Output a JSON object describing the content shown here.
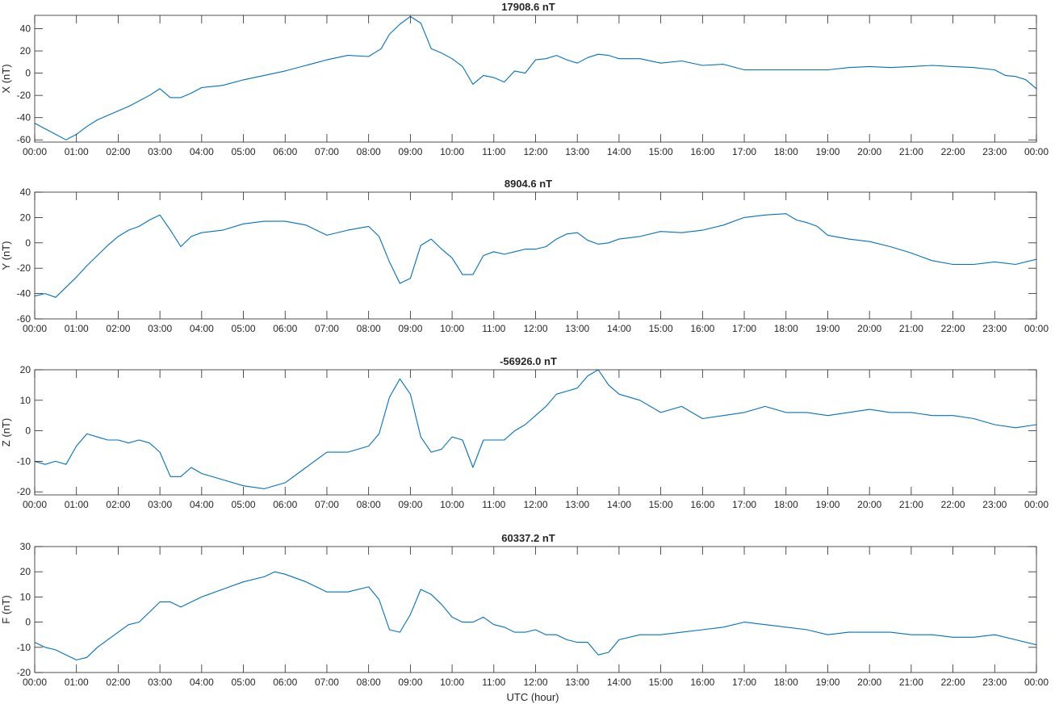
{
  "figure": {
    "xlabel": "UTC (hour)",
    "line_color": "#0072bd",
    "axis_color": "#262626"
  },
  "chart_data": [
    {
      "type": "line",
      "title": "17908.6 nT",
      "ylabel": "X (nT)",
      "xlabel": "",
      "xlim": [
        0,
        24
      ],
      "ylim": [
        -62,
        52
      ],
      "yticks": [
        -60,
        -40,
        -20,
        0,
        20,
        40
      ],
      "xtick_labels": [
        "00:00",
        "01:00",
        "02:00",
        "03:00",
        "04:00",
        "05:00",
        "06:00",
        "07:00",
        "08:00",
        "09:00",
        "10:00",
        "11:00",
        "12:00",
        "13:00",
        "14:00",
        "15:00",
        "16:00",
        "17:00",
        "18:00",
        "19:00",
        "20:00",
        "21:00",
        "22:00",
        "23:00",
        "00:00"
      ],
      "series": [
        {
          "x": [
            0,
            0.25,
            0.5,
            0.75,
            1,
            1.25,
            1.5,
            1.75,
            2,
            2.25,
            2.5,
            2.75,
            3,
            3.25,
            3.5,
            3.75,
            4,
            4.5,
            5,
            5.5,
            6,
            6.5,
            7,
            7.5,
            8,
            8.3,
            8.5,
            8.75,
            9,
            9.25,
            9.5,
            9.75,
            10,
            10.25,
            10.5,
            10.75,
            11,
            11.25,
            11.5,
            11.75,
            12,
            12.25,
            12.5,
            12.75,
            13,
            13.25,
            13.5,
            13.75,
            14,
            14.5,
            15,
            15.5,
            16,
            16.5,
            17,
            17.5,
            18,
            18.5,
            19,
            19.5,
            20,
            20.5,
            21,
            21.5,
            22,
            22.5,
            23,
            23.25,
            23.5,
            23.75,
            24
          ],
          "y": [
            -45,
            -50,
            -55,
            -60,
            -55,
            -48,
            -42,
            -38,
            -34,
            -30,
            -25,
            -20,
            -14,
            -22,
            -22,
            -18,
            -13,
            -11,
            -6,
            -2,
            2,
            7,
            12,
            16,
            15,
            22,
            35,
            44,
            51,
            45,
            22,
            18,
            13,
            6,
            -10,
            -2,
            -4,
            -8,
            2,
            0,
            12,
            13,
            16,
            12,
            9,
            14,
            17,
            16,
            13,
            13,
            9,
            11,
            7,
            8,
            3,
            3,
            3,
            3,
            3,
            5,
            6,
            5,
            6,
            7,
            6,
            5,
            3,
            -2,
            -3,
            -6,
            -14
          ]
        }
      ]
    },
    {
      "type": "line",
      "title": "8904.6 nT",
      "ylabel": "Y (nT)",
      "xlabel": "",
      "xlim": [
        0,
        24
      ],
      "ylim": [
        -60,
        40
      ],
      "yticks": [
        -60,
        -40,
        -20,
        0,
        20,
        40
      ],
      "xtick_labels": [
        "00:00",
        "01:00",
        "02:00",
        "03:00",
        "04:00",
        "05:00",
        "06:00",
        "07:00",
        "08:00",
        "09:00",
        "10:00",
        "11:00",
        "12:00",
        "13:00",
        "14:00",
        "15:00",
        "16:00",
        "17:00",
        "18:00",
        "19:00",
        "20:00",
        "21:00",
        "22:00",
        "23:00",
        "00:00"
      ],
      "series": [
        {
          "x": [
            0,
            0.25,
            0.5,
            0.75,
            1,
            1.25,
            1.5,
            1.75,
            2,
            2.25,
            2.5,
            2.75,
            3,
            3.25,
            3.5,
            3.75,
            4,
            4.5,
            5,
            5.5,
            6,
            6.5,
            7,
            7.5,
            8,
            8.25,
            8.5,
            8.75,
            9,
            9.25,
            9.5,
            9.75,
            10,
            10.25,
            10.5,
            10.75,
            11,
            11.25,
            11.5,
            11.75,
            12,
            12.25,
            12.5,
            12.75,
            13,
            13.25,
            13.5,
            13.75,
            14,
            14.5,
            15,
            15.5,
            16,
            16.5,
            17,
            17.5,
            18,
            18.25,
            18.5,
            18.75,
            19,
            19.5,
            20,
            20.5,
            21,
            21.5,
            22,
            22.5,
            23,
            23.5,
            24
          ],
          "y": [
            -42,
            -40,
            -43,
            -35,
            -27,
            -18,
            -10,
            -2,
            5,
            10,
            13,
            18,
            22,
            10,
            -3,
            5,
            8,
            10,
            15,
            17,
            17,
            14,
            6,
            10,
            13,
            5,
            -15,
            -32,
            -28,
            -2,
            3,
            -5,
            -12,
            -25,
            -25,
            -10,
            -7,
            -9,
            -7,
            -5,
            -5,
            -3,
            3,
            7,
            8,
            2,
            -1,
            0,
            3,
            5,
            9,
            8,
            10,
            14,
            20,
            22,
            23,
            18,
            16,
            13,
            6,
            3,
            1,
            -3,
            -8,
            -14,
            -17,
            -17,
            -15,
            -17,
            -13
          ]
        }
      ]
    },
    {
      "type": "line",
      "title": "-56926.0 nT",
      "ylabel": "Z (nT)",
      "xlabel": "",
      "xlim": [
        0,
        24
      ],
      "ylim": [
        -21,
        20
      ],
      "yticks": [
        -20,
        -10,
        0,
        10,
        20
      ],
      "xtick_labels": [
        "00:00",
        "01:00",
        "02:00",
        "03:00",
        "04:00",
        "05:00",
        "06:00",
        "07:00",
        "08:00",
        "09:00",
        "10:00",
        "11:00",
        "12:00",
        "13:00",
        "14:00",
        "15:00",
        "16:00",
        "17:00",
        "18:00",
        "19:00",
        "20:00",
        "21:00",
        "22:00",
        "23:00",
        "00:00"
      ],
      "series": [
        {
          "x": [
            0,
            0.25,
            0.5,
            0.75,
            1,
            1.25,
            1.5,
            1.75,
            2,
            2.25,
            2.5,
            2.75,
            3,
            3.25,
            3.5,
            3.75,
            4,
            4.5,
            5,
            5.5,
            6,
            6.5,
            7,
            7.5,
            8,
            8.25,
            8.5,
            8.75,
            9,
            9.25,
            9.5,
            9.75,
            10,
            10.25,
            10.5,
            10.75,
            11,
            11.25,
            11.5,
            11.75,
            12,
            12.25,
            12.5,
            12.75,
            13,
            13.25,
            13.5,
            13.75,
            14,
            14.5,
            15,
            15.5,
            16,
            16.5,
            17,
            17.5,
            18,
            18.5,
            19,
            19.5,
            20,
            20.5,
            21,
            21.5,
            22,
            22.5,
            23,
            23.5,
            24
          ],
          "y": [
            -10,
            -11,
            -10,
            -11,
            -5,
            -1,
            -2,
            -3,
            -3,
            -4,
            -3,
            -4,
            -7,
            -15,
            -15,
            -12,
            -14,
            -16,
            -18,
            -19,
            -17,
            -12,
            -7,
            -7,
            -5,
            -1,
            11,
            17,
            12,
            -2,
            -7,
            -6,
            -2,
            -3,
            -12,
            -3,
            -3,
            -3,
            0,
            2,
            5,
            8,
            12,
            13,
            14,
            18,
            20,
            15,
            12,
            10,
            6,
            8,
            4,
            5,
            6,
            8,
            6,
            6,
            5,
            6,
            7,
            6,
            6,
            5,
            5,
            4,
            2,
            1,
            2
          ]
        }
      ]
    },
    {
      "type": "line",
      "title": "60337.2 nT",
      "ylabel": "F (nT)",
      "xlabel": "UTC (hour)",
      "xlim": [
        0,
        24
      ],
      "ylim": [
        -20,
        30
      ],
      "yticks": [
        -20,
        -10,
        0,
        10,
        20,
        30
      ],
      "xtick_labels": [
        "00:00",
        "01:00",
        "02:00",
        "03:00",
        "04:00",
        "05:00",
        "06:00",
        "07:00",
        "08:00",
        "09:00",
        "10:00",
        "11:00",
        "12:00",
        "13:00",
        "14:00",
        "15:00",
        "16:00",
        "17:00",
        "18:00",
        "19:00",
        "20:00",
        "21:00",
        "22:00",
        "23:00",
        "00:00"
      ],
      "series": [
        {
          "x": [
            0,
            0.25,
            0.5,
            0.75,
            1,
            1.25,
            1.5,
            1.75,
            2,
            2.25,
            2.5,
            2.75,
            3,
            3.25,
            3.5,
            3.75,
            4,
            4.5,
            5,
            5.5,
            5.75,
            6,
            6.5,
            7,
            7.5,
            8,
            8.25,
            8.5,
            8.75,
            9,
            9.25,
            9.5,
            9.75,
            10,
            10.25,
            10.5,
            10.75,
            11,
            11.25,
            11.5,
            11.75,
            12,
            12.25,
            12.5,
            12.75,
            13,
            13.25,
            13.5,
            13.75,
            14,
            14.5,
            15,
            15.5,
            16,
            16.5,
            17,
            17.5,
            18,
            18.5,
            19,
            19.5,
            20,
            20.5,
            21,
            21.5,
            22,
            22.5,
            23,
            23.5,
            24
          ],
          "y": [
            -8,
            -10,
            -11,
            -13,
            -15,
            -14,
            -10,
            -7,
            -4,
            -1,
            0,
            4,
            8,
            8,
            6,
            8,
            10,
            13,
            16,
            18,
            20,
            19,
            16,
            12,
            12,
            14,
            9,
            -3,
            -4,
            3,
            13,
            11,
            7,
            2,
            0,
            0,
            2,
            -1,
            -2,
            -4,
            -4,
            -3,
            -5,
            -5,
            -7,
            -8,
            -8,
            -13,
            -12,
            -7,
            -5,
            -5,
            -4,
            -3,
            -2,
            0,
            -1,
            -2,
            -3,
            -5,
            -4,
            -4,
            -4,
            -5,
            -5,
            -6,
            -6,
            -5,
            -7,
            -9
          ]
        }
      ]
    }
  ]
}
